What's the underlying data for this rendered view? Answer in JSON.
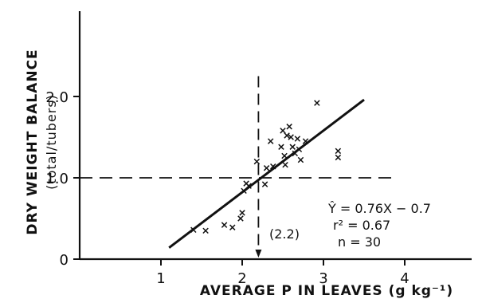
{
  "chart_data": {
    "type": "scatter",
    "xlabel": "AVERAGE P IN LEAVES (g kg⁻¹)",
    "ylabel": "DRY WEIGHT BALANCE",
    "ylabel_sub": "(total/tubers)",
    "xlim": [
      0,
      5
    ],
    "ylim": [
      0,
      3
    ],
    "x_ticks": [
      1,
      2,
      3,
      4
    ],
    "x_tick_labels": [
      "1",
      "2",
      "3",
      "4"
    ],
    "y_ticks": [
      0,
      1.0,
      2.0
    ],
    "y_tick_labels": [
      "0",
      "1.0",
      "2.0"
    ],
    "grid": false,
    "marker": "x",
    "points": [
      [
        1.4,
        0.36
      ],
      [
        1.55,
        0.35
      ],
      [
        1.78,
        0.42
      ],
      [
        1.88,
        0.39
      ],
      [
        1.98,
        0.5
      ],
      [
        2.0,
        0.57
      ],
      [
        2.02,
        0.84
      ],
      [
        2.05,
        0.93
      ],
      [
        2.08,
        0.9
      ],
      [
        2.18,
        1.2
      ],
      [
        2.28,
        0.92
      ],
      [
        2.3,
        1.12
      ],
      [
        2.35,
        1.45
      ],
      [
        2.38,
        1.14
      ],
      [
        2.48,
        1.38
      ],
      [
        2.5,
        1.58
      ],
      [
        2.52,
        1.27
      ],
      [
        2.53,
        1.16
      ],
      [
        2.55,
        1.52
      ],
      [
        2.58,
        1.63
      ],
      [
        2.6,
        1.5
      ],
      [
        2.62,
        1.38
      ],
      [
        2.65,
        1.3
      ],
      [
        2.68,
        1.48
      ],
      [
        2.7,
        1.35
      ],
      [
        2.72,
        1.22
      ],
      [
        2.78,
        1.45
      ],
      [
        2.92,
        1.92
      ],
      [
        3.18,
        1.33
      ],
      [
        3.18,
        1.25
      ]
    ],
    "regression_line": {
      "x": [
        1.1,
        3.5
      ],
      "y": [
        0.14,
        1.96
      ]
    },
    "threshold": {
      "x": 2.2,
      "y": 1.0
    },
    "threshold_label": "(2.2)",
    "equation": {
      "line1": "Ŷ = 0.76X − 0.7",
      "line2": "r² = 0.67",
      "line3": "n = 30"
    }
  }
}
